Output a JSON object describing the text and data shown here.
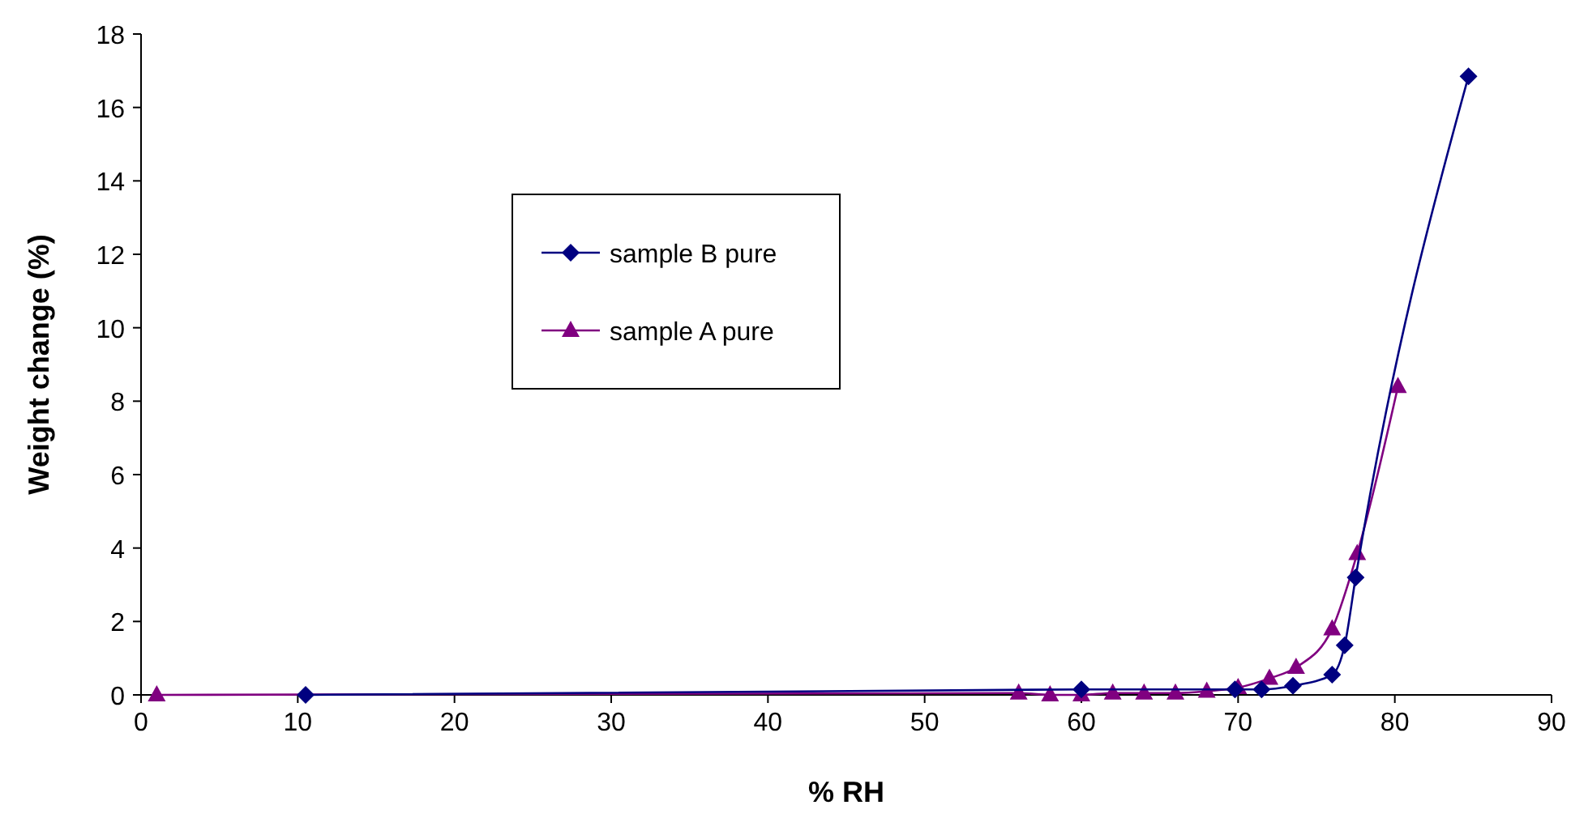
{
  "chart_data": {
    "type": "line",
    "xlabel": "% RH",
    "ylabel": "Weight change (%)",
    "xlim": [
      0,
      90
    ],
    "xticks": [
      0,
      10,
      20,
      30,
      40,
      50,
      60,
      70,
      80,
      90
    ],
    "ylim": [
      0,
      18
    ],
    "yticks": [
      0,
      2,
      4,
      6,
      8,
      10,
      12,
      14,
      16,
      18
    ],
    "grid": false,
    "legend": "top left",
    "line_style": "solid",
    "series": [
      {
        "name": "sample B pure",
        "color": "#000080",
        "marker": "diamond",
        "x": [
          10.5,
          60,
          69.8,
          71.5,
          73.5,
          76,
          76.8,
          77.5,
          84.7
        ],
        "values": [
          0,
          0.15,
          0.15,
          0.15,
          0.25,
          0.55,
          1.35,
          3.2,
          16.85
        ]
      },
      {
        "name": "sample A pure",
        "color": "#800080",
        "marker": "triangle",
        "x": [
          1,
          56,
          58,
          60,
          62,
          64,
          66,
          68,
          70,
          72,
          73.7,
          76,
          77.6,
          80.2
        ],
        "values": [
          0,
          0.05,
          0,
          0,
          0.05,
          0.05,
          0.05,
          0.1,
          0.2,
          0.45,
          0.75,
          1.8,
          3.85,
          8.4
        ]
      }
    ]
  }
}
